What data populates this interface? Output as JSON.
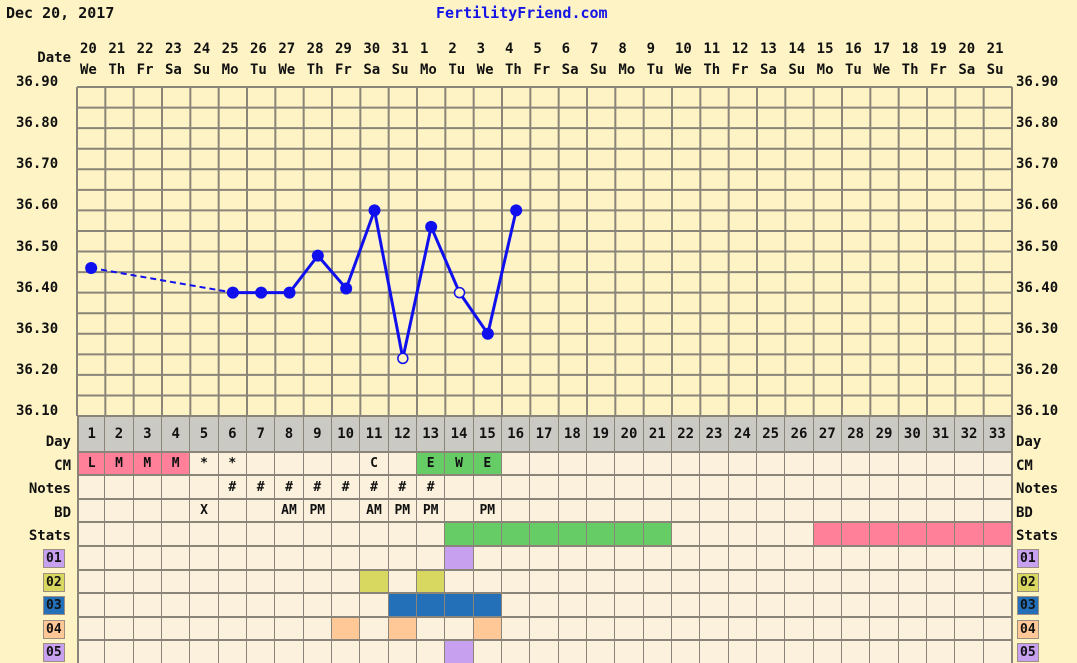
{
  "header": {
    "date": "Dec 20, 2017",
    "site": "FertilityFriend.com"
  },
  "labels": {
    "date": "Date",
    "day": "Day",
    "cm": "CM",
    "notes": "Notes",
    "bd": "BD",
    "stats": "Stats"
  },
  "colors": {
    "line": "#1010ee",
    "grid_bg": "#fdf3c4",
    "cell_bg": "#fbf1dc",
    "green": "#66cc66",
    "pink": "#ff8098",
    "blue": "#2370b8",
    "purple": "#c8a0f0",
    "yellowgreen": "#d8d860",
    "peach": "#ffc896"
  },
  "chart_data": {
    "type": "line",
    "ylim": [
      36.1,
      36.9
    ],
    "yticks": [
      "36.90",
      "36.80",
      "36.70",
      "36.60",
      "36.50",
      "36.40",
      "36.30",
      "36.20",
      "36.10"
    ],
    "grid": true,
    "dates": [
      "20",
      "21",
      "22",
      "23",
      "24",
      "25",
      "26",
      "27",
      "28",
      "29",
      "30",
      "31",
      "1",
      "2",
      "3",
      "4",
      "5",
      "6",
      "7",
      "8",
      "9",
      "10",
      "11",
      "12",
      "13",
      "14",
      "15",
      "16",
      "17",
      "18",
      "19",
      "20",
      "21"
    ],
    "weekdays": [
      "We",
      "Th",
      "Fr",
      "Sa",
      "Su",
      "Mo",
      "Tu",
      "We",
      "Th",
      "Fr",
      "Sa",
      "Su",
      "Mo",
      "Tu",
      "We",
      "Th",
      "Fr",
      "Sa",
      "Su",
      "Mo",
      "Tu",
      "We",
      "Th",
      "Fr",
      "Sa",
      "Su",
      "Mo",
      "Tu",
      "We",
      "Th",
      "Fr",
      "Sa",
      "Su"
    ],
    "days": [
      1,
      2,
      3,
      4,
      5,
      6,
      7,
      8,
      9,
      10,
      11,
      12,
      13,
      14,
      15,
      16,
      17,
      18,
      19,
      20,
      21,
      22,
      23,
      24,
      25,
      26,
      27,
      28,
      29,
      30,
      31,
      32,
      33
    ],
    "temps": [
      {
        "day": 1,
        "temp": 36.46,
        "open": false
      },
      {
        "day": 6,
        "temp": 36.4,
        "open": false
      },
      {
        "day": 7,
        "temp": 36.4,
        "open": false
      },
      {
        "day": 8,
        "temp": 36.4,
        "open": false
      },
      {
        "day": 9,
        "temp": 36.49,
        "open": false
      },
      {
        "day": 10,
        "temp": 36.41,
        "open": false
      },
      {
        "day": 11,
        "temp": 36.6,
        "open": false
      },
      {
        "day": 12,
        "temp": 36.24,
        "open": true
      },
      {
        "day": 13,
        "temp": 36.56,
        "open": false
      },
      {
        "day": 14,
        "temp": 36.4,
        "open": true
      },
      {
        "day": 15,
        "temp": 36.3,
        "open": false
      },
      {
        "day": 16,
        "temp": 36.6,
        "open": false
      }
    ],
    "dashed_segment": [
      1,
      6
    ]
  },
  "rows": {
    "cm": {
      "1": {
        "t": "L",
        "c": "pink"
      },
      "2": {
        "t": "M",
        "c": "pink"
      },
      "3": {
        "t": "M",
        "c": "pink"
      },
      "4": {
        "t": "M",
        "c": "pink"
      },
      "5": {
        "t": "*"
      },
      "6": {
        "t": "*"
      },
      "11": {
        "t": "C"
      },
      "13": {
        "t": "E",
        "c": "green"
      },
      "14": {
        "t": "W",
        "c": "green"
      },
      "15": {
        "t": "E",
        "c": "green"
      }
    },
    "notes": {
      "6": {
        "t": "#"
      },
      "7": {
        "t": "#"
      },
      "8": {
        "t": "#"
      },
      "9": {
        "t": "#"
      },
      "10": {
        "t": "#"
      },
      "11": {
        "t": "#"
      },
      "12": {
        "t": "#"
      },
      "13": {
        "t": "#"
      }
    },
    "bd": {
      "5": {
        "t": "X"
      },
      "8": {
        "t": "AM"
      },
      "9": {
        "t": "PM"
      },
      "11": {
        "t": "AM"
      },
      "12": {
        "t": "PM"
      },
      "13": {
        "t": "PM"
      },
      "15": {
        "t": "PM"
      }
    },
    "stats": {
      "14": {
        "c": "green"
      },
      "15": {
        "c": "green"
      },
      "16": {
        "c": "green"
      },
      "17": {
        "c": "green"
      },
      "18": {
        "c": "green"
      },
      "19": {
        "c": "green"
      },
      "20": {
        "c": "green"
      },
      "21": {
        "c": "green"
      },
      "27": {
        "c": "pink"
      },
      "28": {
        "c": "pink"
      },
      "29": {
        "c": "pink"
      },
      "30": {
        "c": "pink"
      },
      "31": {
        "c": "pink"
      },
      "32": {
        "c": "pink"
      },
      "33": {
        "c": "pink"
      }
    }
  },
  "custom_rows": [
    {
      "label": "01",
      "color": "purple",
      "days": [
        14
      ]
    },
    {
      "label": "02",
      "color": "yellowgreen",
      "days": [
        11,
        13
      ]
    },
    {
      "label": "03",
      "color": "blue",
      "days": [
        12,
        13,
        14,
        15
      ]
    },
    {
      "label": "04",
      "color": "peach",
      "days": [
        10,
        12,
        15
      ]
    },
    {
      "label": "05",
      "color": "purple",
      "days": [
        14
      ]
    }
  ]
}
